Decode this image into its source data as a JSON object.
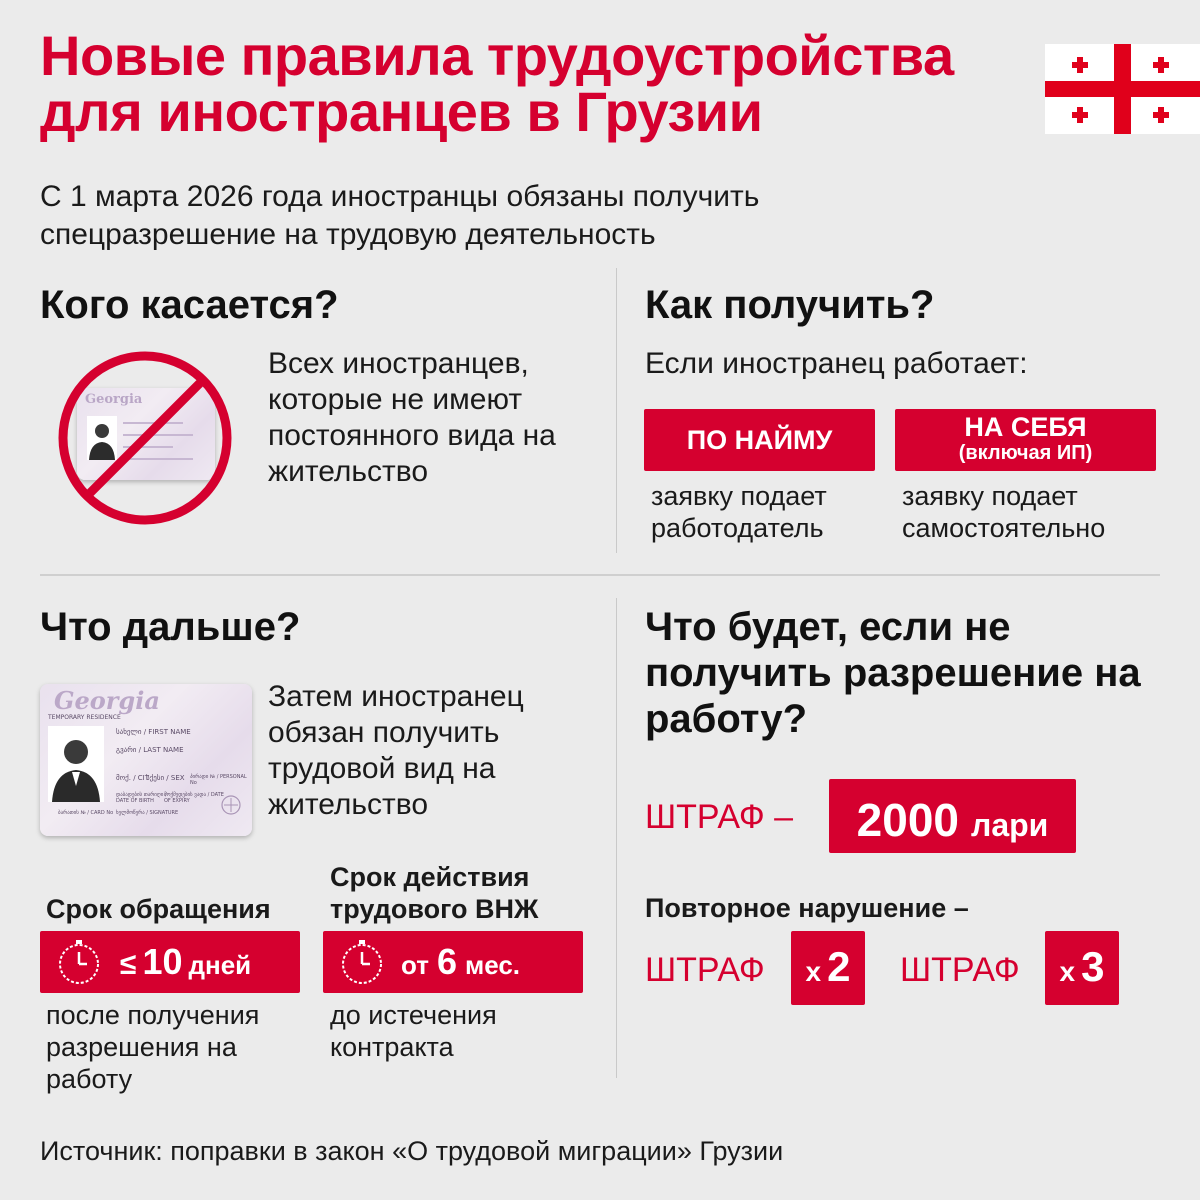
{
  "title": "Новые правила трудоустройства для иностранцев в Грузии",
  "subtitle": "С 1 марта 2026 года иностранцы обязаны получить спецразрешение на трудовую деятельность",
  "who": {
    "heading": "Кого касается?",
    "text": "Всех иностранцев, которые не имеют постоянного вида на жительство",
    "icon": "crossed-out-id-card-icon"
  },
  "how": {
    "heading": "Как получить?",
    "intro": "Если иностранец работает:",
    "option1_label": "ПО НАЙМУ",
    "option1_desc": "заявку подает работодатель",
    "option2_label": "НА СЕБЯ",
    "option2_sub": "(включая ИП)",
    "option2_desc": "заявку подает самостоятельно"
  },
  "next": {
    "heading": "Что дальше?",
    "text": "Затем иностранец обязан получить трудовой вид на жительство",
    "deadline_label": "Срок обращения",
    "deadline_value_prefix": "≤",
    "deadline_value_num": "10",
    "deadline_value_unit": "дней",
    "deadline_desc": "после получения разрешения на работу",
    "validity_label": "Срок действия трудового ВНЖ",
    "validity_value_prefix": "от",
    "validity_value_num": "6",
    "validity_value_unit": "мес.",
    "validity_desc": "до истечения контракта"
  },
  "penalty": {
    "heading": "Что будет, если не получить разрешение на работу?",
    "fine_label": "ШТРАФ –",
    "fine_amount": "2000",
    "fine_currency": "лари",
    "repeat_label": "Повторное нарушение –",
    "repeat1_label": "ШТРАФ",
    "repeat1_x": "х",
    "repeat1_mult": "2",
    "repeat2_label": "ШТРАФ",
    "repeat2_x": "х",
    "repeat2_mult": "3"
  },
  "card_text": {
    "brand": "Georgia",
    "first_name": "სახელი / FIRST NAME",
    "last_name": "გვარი / LAST NAME",
    "cit": "მოქ. / CIT",
    "sex": "სქესი / SEX",
    "dob": "დაბადების თარიღი / DATE OF BIRTH",
    "doc_no": "პირადი № / PERSONAL No",
    "expiry": "მოქმედების ვადა / DATE OF EXPIRY",
    "card_no": "ბარათის № / CARD No",
    "signature": "ხელმოწერა / SIGNATURE",
    "card_type": "TEMPORARY RESIDENCE"
  },
  "source": "Источник: поправки в закон «О трудовой миграции» Грузии",
  "colors": {
    "accent": "#d5002f",
    "background": "#ebebeb",
    "text": "#1a1a1a"
  }
}
